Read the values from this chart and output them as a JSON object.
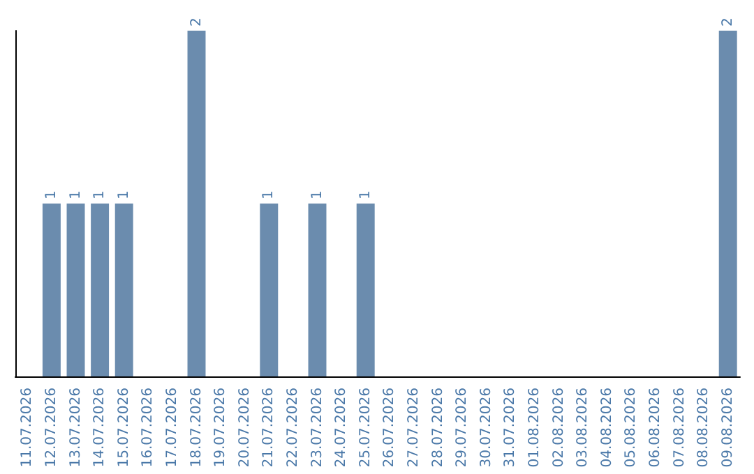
{
  "chart_data": {
    "type": "bar",
    "categories": [
      "11.07.2026",
      "12.07.2026",
      "13.07.2026",
      "14.07.2026",
      "15.07.2026",
      "16.07.2026",
      "17.07.2026",
      "18.07.2026",
      "19.07.2026",
      "20.07.2026",
      "21.07.2026",
      "22.07.2026",
      "23.07.2026",
      "24.07.2026",
      "25.07.2026",
      "26.07.2026",
      "27.07.2026",
      "28.07.2026",
      "29.07.2026",
      "30.07.2026",
      "31.07.2026",
      "01.08.2026",
      "02.08.2026",
      "03.08.2026",
      "04.08.2026",
      "05.08.2026",
      "06.08.2026",
      "07.08.2026",
      "08.08.2026",
      "09.08.2026"
    ],
    "values": [
      0,
      1,
      1,
      1,
      1,
      0,
      0,
      2,
      0,
      0,
      1,
      0,
      1,
      0,
      1,
      0,
      0,
      0,
      0,
      0,
      0,
      0,
      0,
      0,
      0,
      0,
      0,
      0,
      0,
      2
    ],
    "value_labels": [
      null,
      "1",
      "1",
      "1",
      "1",
      null,
      null,
      "2",
      null,
      null,
      "1",
      null,
      "1",
      null,
      "1",
      null,
      null,
      null,
      null,
      null,
      null,
      null,
      null,
      null,
      null,
      null,
      null,
      null,
      null,
      "2"
    ],
    "color": "#6b8cae",
    "grid": false,
    "tick_labels": "x"
  }
}
